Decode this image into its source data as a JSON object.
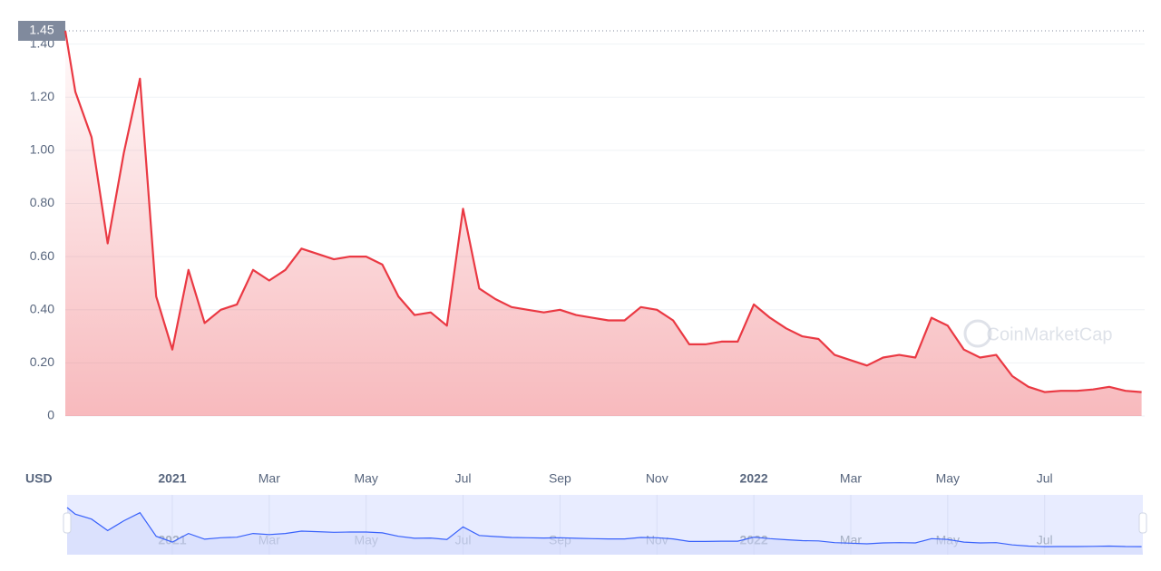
{
  "chart_data": {
    "type": "line",
    "categories": [
      null,
      null,
      null,
      null,
      null,
      null,
      null,
      "2021",
      null,
      null,
      null,
      null,
      null,
      "Mar",
      null,
      null,
      null,
      null,
      null,
      "May",
      null,
      null,
      null,
      null,
      null,
      "Jul",
      null,
      null,
      null,
      null,
      null,
      "Sep",
      null,
      null,
      null,
      null,
      null,
      "Nov",
      null,
      null,
      null,
      null,
      null,
      "2022",
      null,
      null,
      null,
      null,
      null,
      "Mar",
      null,
      null,
      null,
      null,
      null,
      "May",
      null,
      null,
      null,
      null,
      null,
      "Jul",
      null,
      null,
      null,
      null,
      null,
      null
    ],
    "series": [
      {
        "color": "#ea3943",
        "values": [
          1.45,
          1.22,
          1.05,
          0.65,
          0.99,
          1.27,
          0.45,
          0.25,
          0.55,
          0.35,
          0.4,
          0.42,
          0.55,
          0.51,
          0.55,
          0.63,
          0.61,
          0.59,
          0.6,
          0.6,
          0.57,
          0.45,
          0.38,
          0.39,
          0.34,
          0.78,
          0.48,
          0.44,
          0.41,
          0.4,
          0.39,
          0.4,
          0.38,
          0.37,
          0.36,
          0.36,
          0.41,
          0.4,
          0.36,
          0.27,
          0.27,
          0.28,
          0.28,
          0.42,
          0.37,
          0.33,
          0.3,
          0.29,
          0.23,
          0.21,
          0.19,
          0.22,
          0.23,
          0.22,
          0.37,
          0.34,
          0.25,
          0.22,
          0.23,
          0.15,
          0.11,
          0.09,
          0.095,
          0.095,
          0.1,
          0.11,
          0.095,
          0.09
        ]
      }
    ],
    "ylim": [
      0,
      1.45
    ],
    "yticks": [
      0,
      {
        "value": 0.2,
        "label": "0.20"
      },
      {
        "value": 0.4,
        "label": "0.40"
      },
      {
        "value": 0.6,
        "label": "0.60"
      },
      {
        "value": 0.8,
        "label": "0.80"
      },
      {
        "value": 1.0,
        "label": "1.00"
      },
      {
        "value": 1.2,
        "label": "1.20"
      },
      {
        "value": 1.4,
        "label": "1.40"
      }
    ],
    "reference_line": 1.45,
    "currency": "USD",
    "watermark": "CoinMarketCap",
    "grid": true
  }
}
